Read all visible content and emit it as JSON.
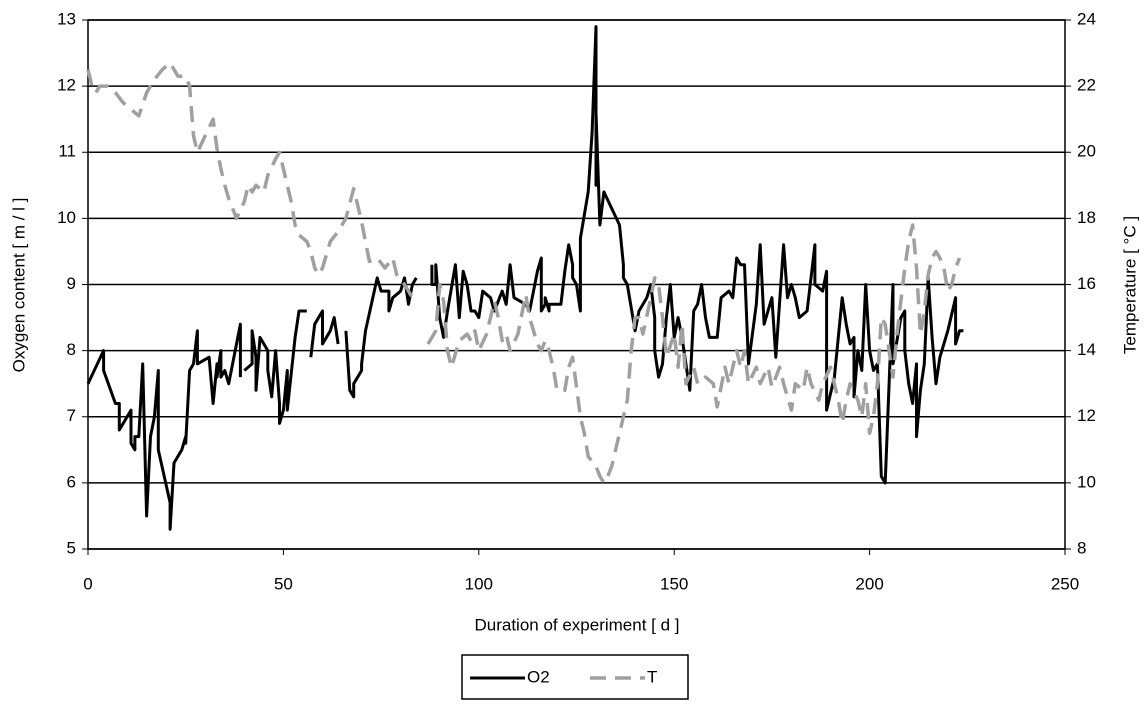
{
  "chart_data": {
    "type": "line",
    "xlabel": "Duration of experiment [ d ]",
    "ylabel": "Oxygen content [ m / l ]",
    "y2label": "Temperature [ °C ]",
    "xlim": [
      0,
      250
    ],
    "xticks": [
      0,
      50,
      100,
      150,
      200,
      250
    ],
    "ylim": [
      5,
      13
    ],
    "yticks": [
      5,
      6,
      7,
      8,
      9,
      10,
      11,
      12,
      13
    ],
    "y2lim": [
      8,
      24
    ],
    "y2ticks": [
      8,
      10,
      12,
      14,
      16,
      18,
      20,
      22,
      24
    ],
    "grid": true,
    "legend": "bottom",
    "series": [
      {
        "name": "O2",
        "color": "#000000",
        "dash": false,
        "x": [
          0,
          4,
          4,
          7,
          8,
          8,
          10,
          11,
          11,
          12,
          12,
          13,
          14,
          15,
          16,
          17,
          18,
          18,
          21,
          21,
          22,
          24,
          25,
          25,
          26,
          27,
          28,
          28,
          31,
          32,
          33,
          33,
          34,
          34,
          35,
          36,
          39,
          39,
          null,
          40,
          42,
          42,
          43,
          43,
          44,
          46,
          46,
          47,
          48,
          49,
          49,
          50,
          51,
          51,
          53,
          54,
          56,
          null,
          57,
          58,
          60,
          60,
          62,
          63,
          64,
          null,
          66,
          67,
          68,
          68,
          70,
          70,
          71,
          74,
          75,
          77,
          77,
          78,
          80,
          81,
          82,
          83,
          84,
          null,
          88,
          88,
          89,
          89,
          90,
          91,
          92,
          94,
          95,
          96,
          97,
          98,
          99,
          100,
          101,
          103,
          104,
          106,
          107,
          108,
          109,
          112,
          113,
          115,
          116,
          116,
          117,
          117,
          118,
          118,
          121,
          122,
          123,
          124,
          124,
          125,
          126,
          126,
          128,
          129,
          130,
          130,
          130,
          131,
          132,
          136,
          137,
          137,
          138,
          140,
          141,
          143,
          144,
          145,
          145,
          146,
          147,
          148,
          149,
          150,
          151,
          152,
          153,
          154,
          155,
          156,
          157,
          158,
          159,
          161,
          162,
          164,
          165,
          166,
          167,
          168,
          169,
          171,
          172,
          173,
          175,
          176,
          178,
          179,
          180,
          181,
          182,
          184,
          186,
          186,
          188,
          189,
          189,
          191,
          193,
          194,
          195,
          196,
          196,
          197,
          198,
          199,
          200,
          201,
          202,
          203,
          204,
          206,
          206,
          208,
          209,
          209,
          210,
          211,
          212,
          212,
          213,
          214,
          215,
          216,
          217,
          218,
          220,
          222,
          222,
          223,
          224
        ],
        "values": [
          7.5,
          8.0,
          7.7,
          7.2,
          7.2,
          6.8,
          7.0,
          7.1,
          6.6,
          6.5,
          6.7,
          6.7,
          7.8,
          5.5,
          6.7,
          7.0,
          7.7,
          6.5,
          5.7,
          5.3,
          6.3,
          6.5,
          6.7,
          6.6,
          7.7,
          7.8,
          8.3,
          7.8,
          7.9,
          7.2,
          7.8,
          7.6,
          8.0,
          7.6,
          7.7,
          7.5,
          8.4,
          7.6,
          null,
          7.7,
          7.8,
          8.3,
          7.9,
          7.4,
          8.2,
          8.0,
          7.7,
          7.3,
          8.0,
          7.2,
          6.9,
          7.1,
          7.7,
          7.1,
          8.2,
          8.6,
          8.6,
          null,
          7.9,
          8.4,
          8.6,
          8.1,
          8.3,
          8.5,
          8.1,
          null,
          8.3,
          7.4,
          7.3,
          7.5,
          7.7,
          7.8,
          8.3,
          9.1,
          8.9,
          8.9,
          8.6,
          8.8,
          8.9,
          9.1,
          8.7,
          9.0,
          9.1,
          null,
          9.3,
          9.0,
          9.0,
          9.3,
          8.5,
          8.2,
          8.6,
          9.3,
          8.5,
          9.2,
          9.0,
          8.6,
          8.6,
          8.5,
          8.9,
          8.8,
          8.6,
          8.9,
          8.7,
          9.3,
          8.8,
          8.7,
          8.6,
          9.2,
          9.4,
          8.6,
          8.7,
          8.8,
          8.6,
          8.7,
          8.7,
          9.2,
          9.6,
          9.3,
          9.1,
          9.0,
          8.6,
          9.7,
          10.4,
          11.3,
          12.9,
          10.5,
          11.6,
          9.9,
          10.4,
          9.9,
          9.3,
          9.1,
          9.0,
          8.3,
          8.6,
          8.8,
          9.0,
          8.5,
          8.0,
          7.6,
          7.8,
          8.5,
          9.0,
          8.2,
          8.5,
          8.2,
          7.8,
          7.4,
          8.6,
          8.7,
          9.0,
          8.5,
          8.2,
          8.2,
          8.8,
          8.9,
          8.8,
          9.4,
          9.3,
          9.3,
          7.8,
          8.7,
          9.6,
          8.4,
          8.8,
          7.9,
          9.6,
          8.8,
          9.0,
          8.8,
          8.5,
          8.6,
          9.6,
          9.0,
          8.9,
          9.2,
          7.1,
          7.6,
          8.8,
          8.4,
          8.1,
          8.2,
          7.3,
          8.0,
          7.7,
          9.0,
          8.0,
          7.7,
          7.8,
          6.1,
          6.0,
          9.0,
          7.8,
          8.5,
          8.6,
          8.0,
          7.5,
          7.2,
          7.8,
          6.7,
          7.4,
          7.8,
          9.1,
          8.2,
          7.5,
          7.9,
          8.3,
          8.8,
          8.1,
          8.3,
          8.3
        ]
      },
      {
        "name": "T",
        "color": "#a0a0a0",
        "dash": true,
        "axis": "y2",
        "x": [
          0,
          1,
          2,
          3,
          5,
          7,
          9,
          11,
          13,
          15,
          17,
          19,
          21,
          23,
          25,
          26,
          27,
          28,
          30,
          32,
          33,
          34,
          35,
          36,
          38,
          40,
          41,
          42,
          43,
          45,
          46,
          48,
          49,
          50,
          52,
          53,
          54,
          56,
          57,
          58,
          59,
          60,
          62,
          64,
          66,
          68,
          70,
          72,
          74,
          76,
          78,
          79,
          81,
          82,
          83,
          84,
          null,
          87,
          89,
          90,
          91,
          92,
          93,
          95,
          97,
          98,
          99,
          100,
          102,
          104,
          105,
          106,
          107,
          108,
          110,
          112,
          113,
          115,
          116,
          117,
          118,
          119,
          120,
          122,
          123,
          124,
          126,
          127,
          128,
          130,
          131,
          132,
          133,
          134,
          135,
          136,
          138,
          139,
          140,
          141,
          142,
          144,
          145,
          146,
          147,
          148,
          150,
          151,
          152,
          153,
          155,
          156,
          158,
          160,
          161,
          163,
          164,
          166,
          167,
          168,
          169,
          171,
          172,
          174,
          175,
          177,
          178,
          180,
          181,
          183,
          184,
          185,
          187,
          188,
          190,
          192,
          193,
          194,
          195,
          197,
          198,
          199,
          200,
          201,
          202,
          203,
          204,
          205,
          206,
          207,
          208,
          209,
          210,
          211,
          212,
          213,
          214,
          215,
          216,
          217,
          218,
          219,
          220,
          221,
          222,
          223
        ],
        "values": [
          22.5,
          22.0,
          21.8,
          22.0,
          22.0,
          21.8,
          21.5,
          21.3,
          21.1,
          21.8,
          22.2,
          22.5,
          22.7,
          22.3,
          22.3,
          22.0,
          20.5,
          20.0,
          20.5,
          21.0,
          20.1,
          19.5,
          19.0,
          18.6,
          18.0,
          18.5,
          19.0,
          18.8,
          19.0,
          18.8,
          19.3,
          19.8,
          20.0,
          19.5,
          18.5,
          17.8,
          17.5,
          17.3,
          17.0,
          16.5,
          16.3,
          16.5,
          17.3,
          17.6,
          18.0,
          18.9,
          17.9,
          16.7,
          16.8,
          16.5,
          16.8,
          16.3,
          16.0,
          15.8,
          15.6,
          15.6,
          null,
          14.2,
          14.6,
          16.0,
          15.5,
          14.0,
          13.5,
          14.3,
          14.5,
          14.3,
          14.6,
          14.0,
          14.5,
          15.5,
          15.0,
          14.3,
          14.5,
          14.0,
          14.5,
          15.7,
          15.0,
          14.2,
          14.0,
          14.3,
          14.0,
          13.5,
          12.8,
          12.8,
          13.5,
          13.8,
          12.0,
          11.5,
          10.8,
          10.5,
          10.2,
          10.0,
          10.2,
          10.5,
          11.0,
          11.5,
          12.5,
          14.0,
          15.0,
          15.0,
          14.5,
          15.6,
          16.2,
          16.0,
          15.0,
          13.8,
          14.5,
          13.5,
          14.8,
          13.0,
          13.5,
          13.0,
          13.2,
          13.0,
          12.3,
          13.5,
          13.0,
          14.0,
          13.5,
          14.0,
          13.0,
          13.5,
          13.0,
          13.5,
          12.9,
          13.5,
          13.0,
          12.2,
          13.0,
          12.8,
          13.5,
          13.0,
          12.5,
          13.0,
          13.5,
          12.5,
          11.8,
          12.5,
          13.0,
          12.5,
          12.0,
          13.0,
          11.5,
          12.0,
          13.0,
          15.0,
          14.8,
          14.0,
          13.2,
          14.5,
          15.5,
          16.5,
          17.3,
          17.8,
          16.5,
          14.5,
          15.2,
          16.3,
          16.8,
          17.0,
          16.8,
          16.5,
          15.8,
          16.0,
          16.5,
          16.8
        ]
      }
    ]
  }
}
